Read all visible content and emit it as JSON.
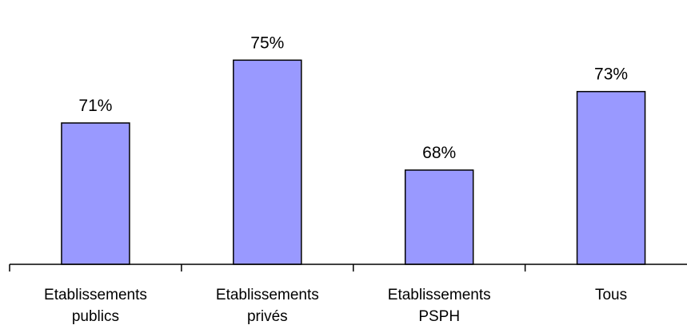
{
  "chart_data": {
    "type": "bar",
    "title": "",
    "xlabel": "",
    "ylabel": "",
    "categories": [
      [
        "Etablissements",
        "publics"
      ],
      [
        "Etablissements",
        "privés"
      ],
      [
        "Etablissements",
        "PSPH"
      ],
      [
        "Tous"
      ]
    ],
    "values": [
      71,
      75,
      68,
      73
    ],
    "value_labels": [
      "71%",
      "75%",
      "68%",
      "73%"
    ],
    "unit": "%",
    "ylim": [
      62,
      77
    ],
    "grid": false,
    "legend": "none",
    "colors": {
      "bar_fill": "#9999ff",
      "bar_stroke": "#000000",
      "axis": "#000000",
      "text": "#000000"
    }
  }
}
